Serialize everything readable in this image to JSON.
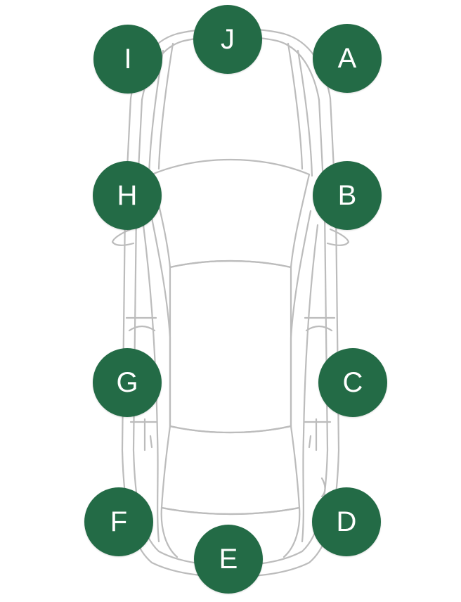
{
  "colors": {
    "marker_fill": "#236b46",
    "car_outline": "#bcbcbc",
    "background": "#ffffff"
  },
  "markers": [
    {
      "id": "a",
      "label": "A"
    },
    {
      "id": "b",
      "label": "B"
    },
    {
      "id": "c",
      "label": "C"
    },
    {
      "id": "d",
      "label": "D"
    },
    {
      "id": "e",
      "label": "E"
    },
    {
      "id": "f",
      "label": "F"
    },
    {
      "id": "g",
      "label": "G"
    },
    {
      "id": "h",
      "label": "H"
    },
    {
      "id": "i",
      "label": "I"
    },
    {
      "id": "j",
      "label": "J"
    }
  ]
}
